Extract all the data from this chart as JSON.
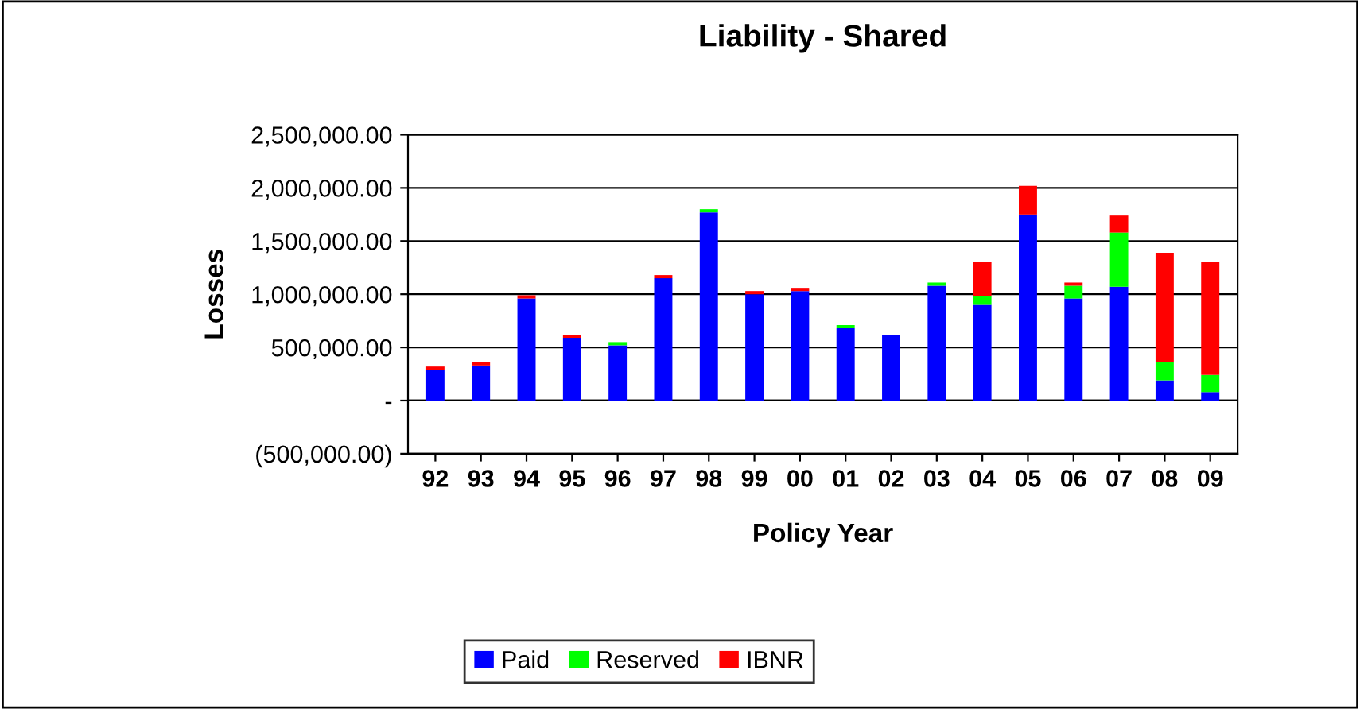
{
  "chart_data": {
    "type": "bar",
    "title": "Liability - Shared",
    "xlabel": "Policy Year",
    "ylabel": "Losses",
    "categories": [
      "92",
      "93",
      "94",
      "95",
      "96",
      "97",
      "98",
      "99",
      "00",
      "01",
      "02",
      "03",
      "04",
      "05",
      "06",
      "07",
      "08",
      "09"
    ],
    "stacked": true,
    "series": [
      {
        "name": "Paid",
        "color": "#0000ff",
        "values": [
          290000,
          330000,
          960000,
          590000,
          520000,
          1150000,
          1770000,
          1000000,
          1030000,
          680000,
          620000,
          1080000,
          900000,
          1750000,
          960000,
          1070000,
          190000,
          80000
        ]
      },
      {
        "name": "Reserved",
        "color": "#00ff00",
        "values": [
          0,
          0,
          0,
          0,
          30000,
          0,
          30000,
          0,
          0,
          30000,
          0,
          30000,
          80000,
          0,
          120000,
          510000,
          170000,
          160000
        ]
      },
      {
        "name": "IBNR",
        "color": "#ff0000",
        "values": [
          30000,
          30000,
          30000,
          30000,
          0,
          30000,
          0,
          30000,
          30000,
          0,
          0,
          0,
          320000,
          270000,
          30000,
          160000,
          1030000,
          1060000
        ]
      }
    ],
    "ylim": [
      -500000,
      2500000
    ],
    "yticks": [
      {
        "value": -500000,
        "label": "(500,000.00)"
      },
      {
        "value": 0,
        "label": "-"
      },
      {
        "value": 500000,
        "label": "500,000.00"
      },
      {
        "value": 1000000,
        "label": "1,000,000.00"
      },
      {
        "value": 1500000,
        "label": "1,500,000.00"
      },
      {
        "value": 2000000,
        "label": "2,000,000.00"
      },
      {
        "value": 2500000,
        "label": "2,500,000.00"
      }
    ],
    "grid": "y",
    "legend": "bottom"
  }
}
